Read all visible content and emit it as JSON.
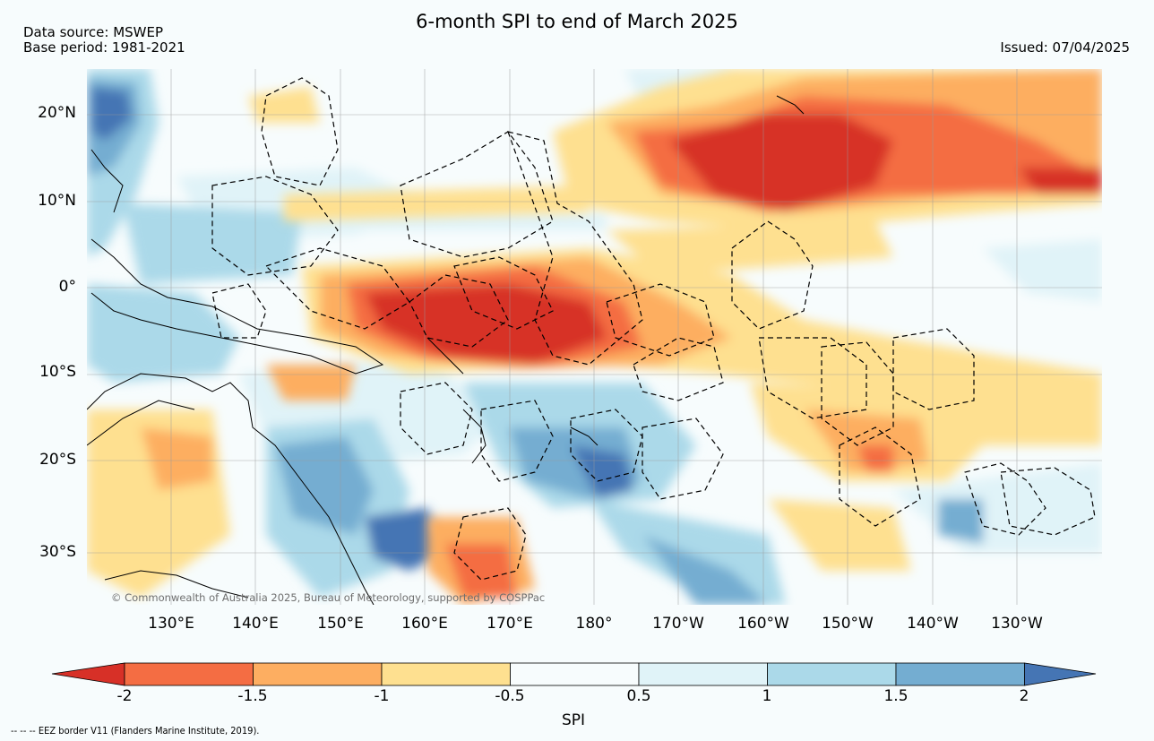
{
  "title": "6-month SPI to end of March 2025",
  "source_line": "Data source: MSWEP",
  "base_period_line": "Base period: 1981-2021",
  "issued_line": "Issued: 07/04/2025",
  "copyright": "© Commonwealth of Australia 2025, Bureau of Meteorology, supported by COSPPac",
  "latitude_labels": [
    "20°N",
    "10°N",
    "0°",
    "10°S",
    "20°S",
    "30°S"
  ],
  "longitude_labels": [
    "130°E",
    "140°E",
    "150°E",
    "160°E",
    "170°E",
    "180°",
    "170°W",
    "160°W",
    "150°W",
    "140°W",
    "130°W"
  ],
  "map_extent": {
    "lon_min": 120,
    "lon_max": 240,
    "lat_min": -37,
    "lat_max": 25
  },
  "colorbar": {
    "label": "SPI",
    "ticks": [
      "-2",
      "-1.5",
      "-1",
      "-0.5",
      "0.5",
      "1",
      "1.5",
      "2"
    ],
    "colors": [
      "#d73027",
      "#f46d43",
      "#fdae61",
      "#fee090",
      "#f7fcfd",
      "#e0f3f8",
      "#abd9e9",
      "#74add1",
      "#4575b4"
    ]
  },
  "footnote": "-- -- -- EEZ border V11 (Flanders Marine Institute, 2019)."
}
